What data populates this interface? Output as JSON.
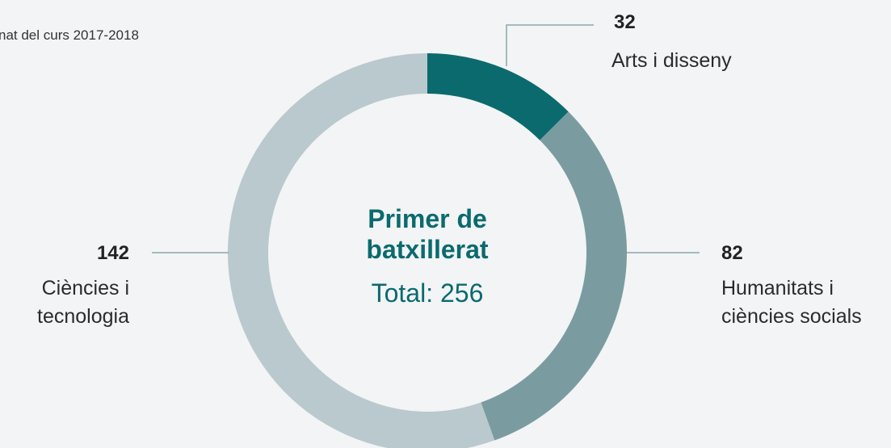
{
  "chart_data": {
    "type": "donut",
    "subtitle": "nat del curs 2017-2018",
    "center_title": "Primer de batxillerat",
    "center_text": "Total: 256",
    "categories": [
      "Arts i disseny",
      "Humanitats i ciències socials",
      "Ciències i tecnologia"
    ],
    "values": [
      32,
      82,
      142
    ],
    "colors": [
      "#0b6a6d",
      "#7a9ca1",
      "#b9c9cd"
    ]
  }
}
